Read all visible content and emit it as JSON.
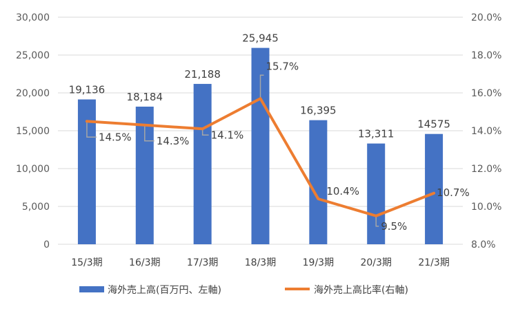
{
  "chart_data": {
    "type": "bar",
    "categories": [
      "15/3期",
      "16/3期",
      "17/3期",
      "18/3期",
      "19/3期",
      "20/3期",
      "21/3期"
    ],
    "series": [
      {
        "name": "海外売上高(百万円、左軸)",
        "type": "bar",
        "axis": "left",
        "values": [
          19136,
          18184,
          21188,
          25945,
          16395,
          13311,
          14575
        ],
        "labels": [
          "19,136",
          "18,184",
          "21,188",
          "25,945",
          "16,395",
          "13,311",
          "14575"
        ],
        "color": "#4472C4"
      },
      {
        "name": "海外売上高比率(右軸)",
        "type": "line",
        "axis": "right",
        "values": [
          14.5,
          14.3,
          14.1,
          15.7,
          10.4,
          9.5,
          10.7
        ],
        "labels": [
          "14.5%",
          "14.3%",
          "14.1%",
          "15.7%",
          "10.4%",
          "9.5%",
          "10.7%"
        ],
        "color": "#ED7D31"
      }
    ],
    "y_left": {
      "min": 0,
      "max": 30000,
      "ticks": [
        0,
        5000,
        10000,
        15000,
        20000,
        25000,
        30000
      ],
      "tick_labels": [
        "0",
        "5,000",
        "10,000",
        "15,000",
        "20,000",
        "25,000",
        "30,000"
      ]
    },
    "y_right": {
      "min": 8,
      "max": 20,
      "ticks": [
        8,
        10,
        12,
        14,
        16,
        18,
        20
      ],
      "tick_labels": [
        "8.0%",
        "10.0%",
        "12.0%",
        "14.0%",
        "16.0%",
        "18.0%",
        "20.0%"
      ]
    },
    "grid": true,
    "legend_position": "bottom",
    "leader_color": "#A6A6A6",
    "grid_color": "#D9D9D9"
  }
}
